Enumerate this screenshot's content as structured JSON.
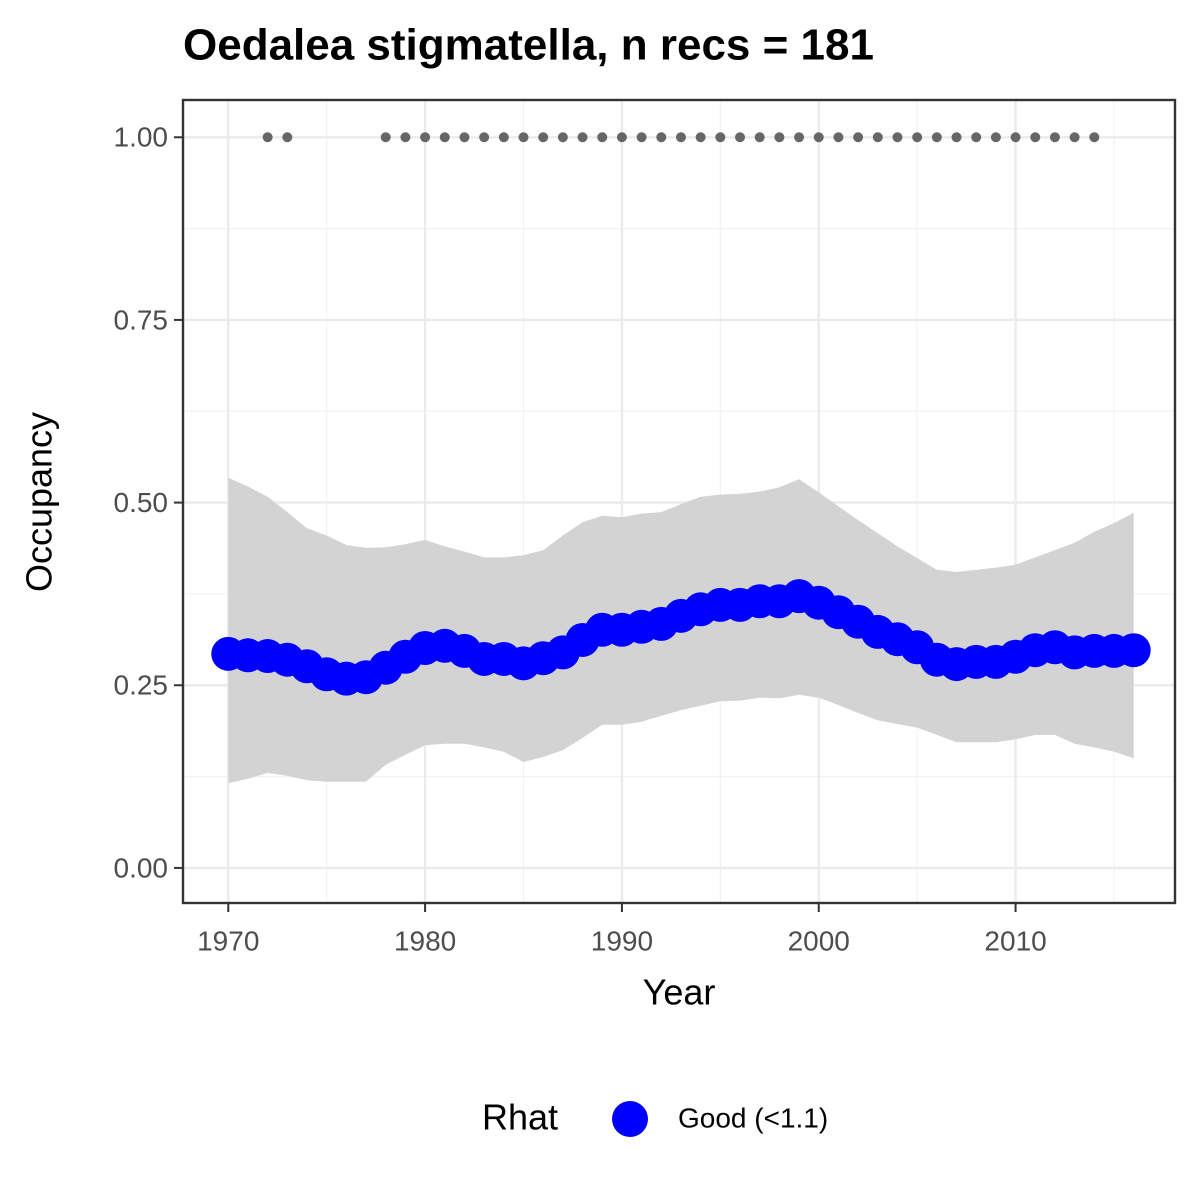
{
  "chart_data": {
    "type": "line",
    "title": "Oedalea stigmatella, n recs = 181",
    "x_label": "Year",
    "y_label": "Occupancy",
    "xlim": [
      1967.7,
      2018.1
    ],
    "ylim": [
      -0.048,
      1.051
    ],
    "xticks": [
      1970,
      1980,
      1990,
      2000,
      2010
    ],
    "yticks": [
      {
        "value": 0,
        "label": "0.00"
      },
      0.25,
      {
        "value": 0.5,
        "label": "0.50"
      },
      0.75,
      {
        "value": 1,
        "label": "1.00"
      }
    ],
    "grid": true,
    "legend_title": "Rhat",
    "legend_position": "bottom",
    "series": [
      {
        "name": "Good (<1.1)",
        "color": "#0000ff",
        "x": [
          1970,
          1971,
          1972,
          1973,
          1974,
          1975,
          1976,
          1977,
          1978,
          1979,
          1980,
          1981,
          1982,
          1983,
          1984,
          1985,
          1986,
          1987,
          1988,
          1989,
          1990,
          1991,
          1992,
          1993,
          1994,
          1995,
          1996,
          1997,
          1998,
          1999,
          2000,
          2001,
          2002,
          2003,
          2004,
          2005,
          2006,
          2007,
          2008,
          2009,
          2010,
          2011,
          2012,
          2013,
          2014,
          2015,
          2016
        ],
        "values": [
          0.293,
          0.291,
          0.29,
          0.285,
          0.276,
          0.265,
          0.259,
          0.261,
          0.274,
          0.289,
          0.301,
          0.304,
          0.297,
          0.286,
          0.286,
          0.28,
          0.287,
          0.295,
          0.312,
          0.326,
          0.326,
          0.33,
          0.334,
          0.345,
          0.354,
          0.36,
          0.36,
          0.365,
          0.365,
          0.372,
          0.363,
          0.35,
          0.337,
          0.323,
          0.313,
          0.302,
          0.285,
          0.279,
          0.282,
          0.282,
          0.289,
          0.298,
          0.302,
          0.295,
          0.297,
          0.297,
          0.298
        ],
        "upper": [
          0.534,
          0.522,
          0.508,
          0.487,
          0.465,
          0.455,
          0.442,
          0.438,
          0.439,
          0.443,
          0.449,
          0.44,
          0.433,
          0.425,
          0.425,
          0.428,
          0.435,
          0.455,
          0.473,
          0.482,
          0.48,
          0.485,
          0.487,
          0.498,
          0.508,
          0.511,
          0.512,
          0.515,
          0.521,
          0.532,
          0.514,
          0.495,
          0.476,
          0.458,
          0.44,
          0.424,
          0.408,
          0.405,
          0.408,
          0.411,
          0.415,
          0.425,
          0.435,
          0.445,
          0.46,
          0.472,
          0.486
        ],
        "lower": [
          0.116,
          0.122,
          0.13,
          0.126,
          0.12,
          0.118,
          0.118,
          0.118,
          0.141,
          0.155,
          0.168,
          0.17,
          0.17,
          0.165,
          0.159,
          0.145,
          0.152,
          0.161,
          0.178,
          0.196,
          0.196,
          0.2,
          0.208,
          0.216,
          0.222,
          0.228,
          0.229,
          0.233,
          0.232,
          0.237,
          0.233,
          0.223,
          0.212,
          0.202,
          0.197,
          0.192,
          0.182,
          0.172,
          0.172,
          0.172,
          0.176,
          0.182,
          0.182,
          0.17,
          0.165,
          0.159,
          0.15
        ],
        "band_color": "#d3d3d3"
      }
    ],
    "detections": {
      "color": "#666666",
      "x": [
        1972,
        1973,
        1978,
        1979,
        1980,
        1981,
        1982,
        1983,
        1984,
        1985,
        1986,
        1987,
        1988,
        1989,
        1990,
        1991,
        1992,
        1993,
        1994,
        1995,
        1996,
        1997,
        1998,
        1999,
        2000,
        2001,
        2002,
        2003,
        2004,
        2005,
        2006,
        2007,
        2008,
        2009,
        2010,
        2011,
        2012,
        2013,
        2014
      ],
      "values": [
        1,
        1,
        1,
        1,
        1,
        1,
        1,
        1,
        1,
        1,
        1,
        1,
        1,
        1,
        1,
        1,
        1,
        1,
        1,
        1,
        1,
        1,
        1,
        1,
        1,
        1,
        1,
        1,
        1,
        1,
        1,
        1,
        1,
        1,
        1,
        1,
        1,
        1,
        1
      ]
    }
  }
}
